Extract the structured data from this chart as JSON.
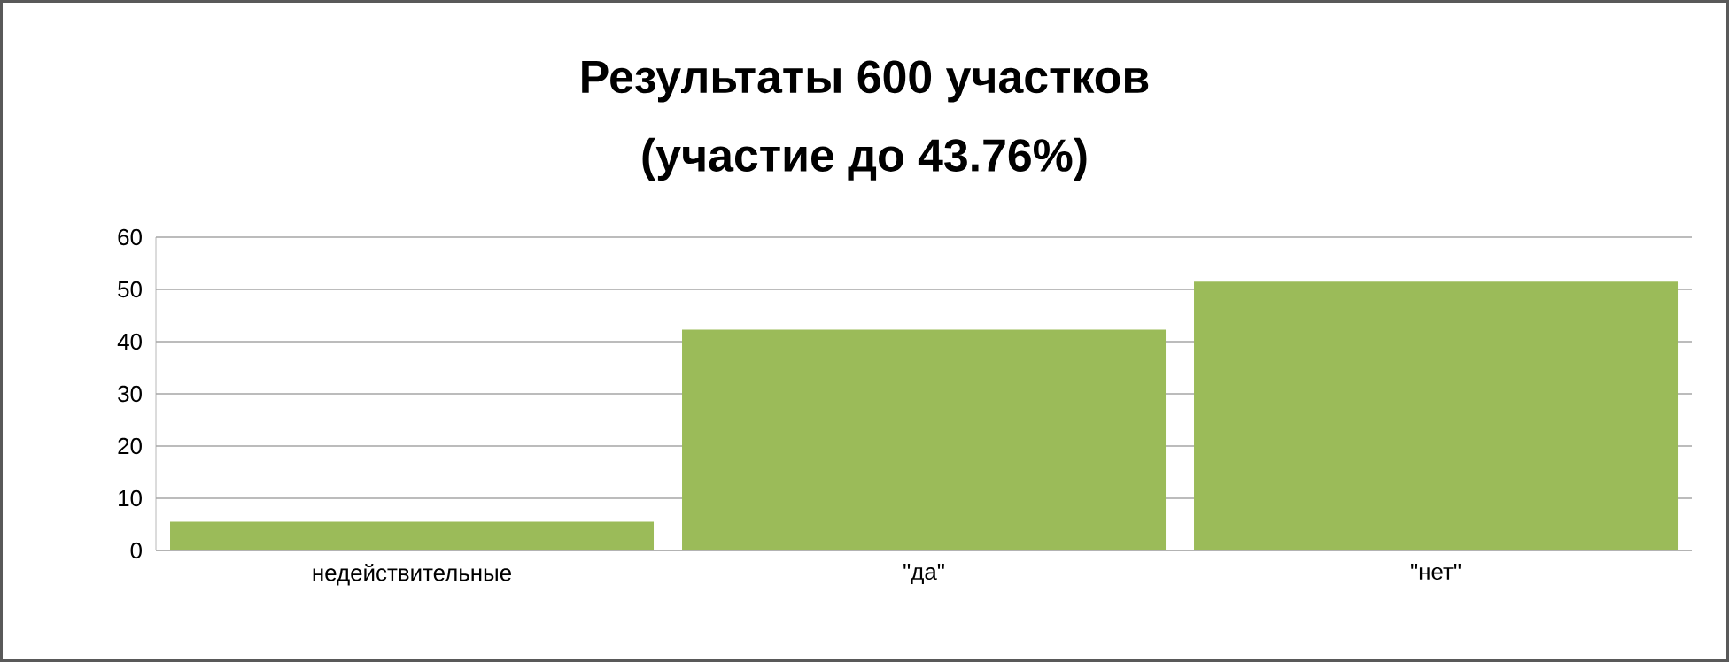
{
  "chart_data": {
    "type": "bar",
    "title": "Результаты 600 участков",
    "subtitle": "(участие до 43.76%)",
    "categories": [
      "недействительные",
      "\"да\"",
      "\"нет\""
    ],
    "values": [
      5.5,
      42.3,
      51.5
    ],
    "color": "#9bbb59",
    "ylim": [
      0,
      60
    ],
    "yticks": [
      0,
      10,
      20,
      30,
      40,
      50,
      60
    ],
    "grid": "y"
  }
}
